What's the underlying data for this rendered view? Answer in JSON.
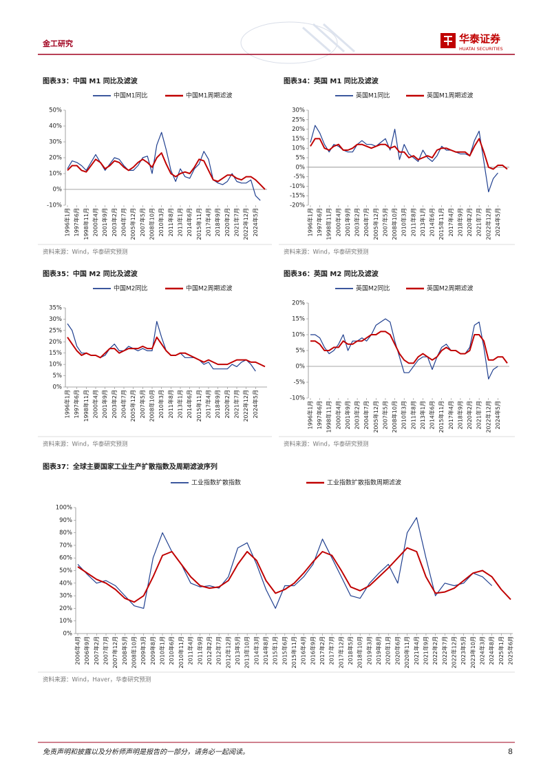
{
  "header": {
    "section": "金工研究",
    "brand": "华泰证券",
    "brand_en": "HUATAI SECURITIES"
  },
  "chart_data": [
    {
      "type": "line",
      "title": "图表33：中国 M1 同比及滤波",
      "source": "资料来源：Wind，华泰研究预测",
      "categories": [
        "1996年1月",
        null,
        "1997年6月",
        null,
        "1998年11月",
        null,
        "2000年4月",
        null,
        "2001年9月",
        null,
        "2003年2月",
        null,
        "2004年7月",
        null,
        "2005年12月",
        null,
        "2007年5月",
        null,
        "2008年10月",
        null,
        "2010年3月",
        null,
        "2011年8月",
        null,
        "2013年1月",
        null,
        "2014年6月",
        null,
        "2015年11月",
        null,
        "2017年4月",
        null,
        "2018年9月",
        null,
        "2020年2月",
        null,
        "2021年7月",
        null,
        "2022年12月",
        null,
        "2024年5月",
        null,
        null
      ],
      "series": [
        {
          "name": "中国M1同比",
          "color": "#1f3f8f",
          "width": 1.2,
          "values": [
            13,
            18,
            17,
            15,
            12,
            17,
            22,
            17,
            12,
            16,
            20,
            19,
            15,
            12,
            12,
            15,
            20,
            21,
            10,
            28,
            36,
            25,
            12,
            5,
            13,
            8,
            7,
            13,
            16,
            24,
            19,
            6,
            4,
            3,
            5,
            10,
            5,
            4,
            4,
            6,
            -4,
            -7,
            null
          ]
        },
        {
          "name": "中国M1周期滤波",
          "color": "#c00000",
          "width": 2,
          "values": [
            12,
            15,
            15,
            12,
            11,
            15,
            19,
            17,
            13,
            15,
            18,
            17,
            14,
            12,
            14,
            17,
            19,
            17,
            14,
            20,
            23,
            16,
            10,
            8,
            10,
            11,
            10,
            14,
            19,
            18,
            12,
            6,
            5,
            7,
            9,
            9,
            7,
            6,
            8,
            8,
            6,
            3,
            0
          ]
        }
      ],
      "ylim": [
        -10,
        50
      ],
      "yticks": [
        {
          "value": -10,
          "label": "-10%"
        },
        {
          "value": 0,
          "label": "0%"
        },
        {
          "value": 10,
          "label": "10%"
        },
        {
          "value": 20,
          "label": "20%"
        },
        {
          "value": 30,
          "label": "30%"
        },
        {
          "value": 40,
          "label": "40%"
        },
        {
          "value": 50,
          "label": "50%"
        }
      ]
    },
    {
      "type": "line",
      "title": "图表34：英国 M1 同比及滤波",
      "source": "资料来源：Wind，华泰研究预测",
      "categories": [
        "1996年1月",
        null,
        "1997年6月",
        null,
        "1998年11月",
        null,
        "2000年4月",
        null,
        "2001年9月",
        null,
        "2003年2月",
        null,
        "2004年7月",
        null,
        "2005年12月",
        null,
        "2007年5月",
        null,
        "2008年10月",
        null,
        "2010年3月",
        null,
        "2011年8月",
        null,
        "2013年1月",
        null,
        "2014年6月",
        null,
        "2015年11月",
        null,
        "2017年4月",
        null,
        "2018年9月",
        null,
        "2020年2月",
        null,
        "2021年7月",
        null,
        "2022年12月",
        null,
        "2024年5月",
        null,
        null
      ],
      "series": [
        {
          "name": "英国M1同比",
          "color": "#1f3f8f",
          "width": 1.2,
          "values": [
            13,
            22,
            18,
            12,
            8,
            12,
            11,
            9,
            8,
            8,
            12,
            14,
            12,
            12,
            11,
            13,
            15,
            9,
            20,
            4,
            12,
            7,
            5,
            3,
            9,
            5,
            3,
            6,
            11,
            9,
            9,
            8,
            7,
            7,
            6,
            14,
            19,
            3,
            -13,
            -6,
            -3,
            null,
            null
          ]
        },
        {
          "name": "英国M1周期滤波",
          "color": "#c00000",
          "width": 2,
          "values": [
            11,
            15,
            15,
            10,
            9,
            11,
            12,
            9,
            9,
            10,
            12,
            12,
            11,
            10,
            11,
            12,
            12,
            10,
            11,
            8,
            8,
            5,
            6,
            4,
            5,
            6,
            5,
            9,
            10,
            10,
            9,
            8,
            8,
            8,
            6,
            11,
            15,
            8,
            0,
            -1,
            1,
            1,
            -1
          ]
        }
      ],
      "ylim": [
        -20,
        30
      ],
      "yticks": [
        {
          "value": -20,
          "label": "-20%"
        },
        {
          "value": -15,
          "label": "-15%"
        },
        {
          "value": -10,
          "label": "-10%"
        },
        {
          "value": -5,
          "label": "-5%"
        },
        {
          "value": 0,
          "label": "0%"
        },
        {
          "value": 5,
          "label": "5%"
        },
        {
          "value": 10,
          "label": "10%"
        },
        {
          "value": 15,
          "label": "15%"
        },
        {
          "value": 20,
          "label": "20%"
        },
        {
          "value": 25,
          "label": "25%"
        },
        {
          "value": 30,
          "label": "30%"
        }
      ]
    },
    {
      "type": "line",
      "title": "图表35：中国 M2 同比及滤波",
      "source": "资料来源：Wind，华泰研究预测",
      "categories": [
        "1996年1月",
        null,
        "1997年6月",
        null,
        "1998年11月",
        null,
        "2000年4月",
        null,
        "2001年9月",
        null,
        "2003年2月",
        null,
        "2004年7月",
        null,
        "2005年12月",
        null,
        "2007年5月",
        null,
        "2008年10月",
        null,
        "2010年3月",
        null,
        "2011年8月",
        null,
        "2013年1月",
        null,
        "2014年6月",
        null,
        "2015年11月",
        null,
        "2017年4月",
        null,
        "2018年9月",
        null,
        "2020年2月",
        null,
        "2021年7月",
        null,
        "2022年12月",
        null,
        "2024年5月",
        null,
        null
      ],
      "series": [
        {
          "name": "中国M2同比",
          "color": "#1f3f8f",
          "width": 1.2,
          "values": [
            28,
            25,
            18,
            15,
            15,
            14,
            14,
            13,
            14,
            17,
            19,
            16,
            16,
            18,
            17,
            16,
            17,
            16,
            16,
            29,
            22,
            16,
            14,
            14,
            15,
            13,
            13,
            13,
            12,
            10,
            11,
            8,
            8,
            8,
            8,
            10,
            9,
            11,
            12,
            10,
            7,
            null,
            null
          ]
        },
        {
          "name": "中国M2周期滤波",
          "color": "#c00000",
          "width": 2,
          "values": [
            22,
            19,
            16,
            14,
            15,
            14,
            14,
            13,
            15,
            17,
            17,
            15,
            16,
            17,
            17,
            17,
            18,
            17,
            17,
            22,
            19,
            16,
            14,
            14,
            15,
            15,
            14,
            13,
            12,
            11,
            12,
            11,
            10,
            10,
            10,
            11,
            12,
            12,
            12,
            11,
            11,
            10,
            9
          ]
        }
      ],
      "ylim": [
        0,
        35
      ],
      "yticks": [
        {
          "value": 0,
          "label": "0%"
        },
        {
          "value": 5,
          "label": "5%"
        },
        {
          "value": 10,
          "label": "10%"
        },
        {
          "value": 15,
          "label": "15%"
        },
        {
          "value": 20,
          "label": "20%"
        },
        {
          "value": 25,
          "label": "25%"
        },
        {
          "value": 30,
          "label": "30%"
        },
        {
          "value": 35,
          "label": "35%"
        }
      ]
    },
    {
      "type": "line",
      "title": "图表36：英国 M2 同比及滤波",
      "source": "资料来源：Wind，华泰研究预测",
      "categories": [
        "1996年1月",
        null,
        "1997年6月",
        null,
        "1998年11月",
        null,
        "2000年4月",
        null,
        "2001年9月",
        null,
        "2003年2月",
        null,
        "2004年7月",
        null,
        "2005年12月",
        null,
        "2007年5月",
        null,
        "2008年10月",
        null,
        "2010年3月",
        null,
        "2011年8月",
        null,
        "2013年1月",
        null,
        "2014年6月",
        null,
        "2015年11月",
        null,
        "2017年4月",
        null,
        "2018年9月",
        null,
        "2020年2月",
        null,
        "2021年7月",
        null,
        "2022年12月",
        null,
        "2024年5月",
        null,
        null
      ],
      "series": [
        {
          "name": "英国M2同比",
          "color": "#1f3f8f",
          "width": 1.2,
          "values": [
            10,
            10,
            9,
            6,
            4,
            5,
            7,
            10,
            5,
            8,
            8,
            9,
            8,
            10,
            13,
            14,
            15,
            14,
            8,
            3,
            -2,
            -2,
            0,
            2,
            3,
            3,
            -1,
            3,
            6,
            7,
            5,
            5,
            4,
            4,
            6,
            13,
            14,
            6,
            -4,
            -1,
            0,
            null,
            null
          ]
        },
        {
          "name": "英国M2周期滤波",
          "color": "#c00000",
          "width": 2,
          "values": [
            8,
            8,
            7,
            5,
            5,
            6,
            6,
            8,
            7,
            7,
            8,
            8,
            9,
            10,
            10,
            11,
            11,
            10,
            7,
            4,
            2,
            1,
            1,
            3,
            4,
            3,
            2,
            3,
            5,
            6,
            5,
            5,
            4,
            4,
            5,
            10,
            10,
            8,
            2,
            2,
            3,
            3,
            1
          ]
        }
      ],
      "ylim": [
        -10,
        20
      ],
      "yticks": [
        {
          "value": -10,
          "label": "-10%"
        },
        {
          "value": -5,
          "label": "-5%"
        },
        {
          "value": 0,
          "label": "0%"
        },
        {
          "value": 5,
          "label": "5%"
        },
        {
          "value": 10,
          "label": "10%"
        },
        {
          "value": 15,
          "label": "15%"
        },
        {
          "value": 20,
          "label": "20%"
        }
      ]
    },
    {
      "type": "line",
      "title": "图表37：全球主要国家工业生产扩散指数及周期滤波序列",
      "source": "资料来源：Wind，Haver，华泰研究预测",
      "categories": [
        "2006年4月",
        "2006年9月",
        "2007年2月",
        "2007年7月",
        "2007年12月",
        "2008年5月",
        "2008年10月",
        "2009年3月",
        "2009年8月",
        "2010年1月",
        "2010年6月",
        "2010年11月",
        "2011年4月",
        "2011年9月",
        "2012年2月",
        "2012年7月",
        "2012年12月",
        "2013年5月",
        "2013年10月",
        "2014年3月",
        "2014年8月",
        "2015年1月",
        "2015年6月",
        "2015年11月",
        "2016年4月",
        "2016年9月",
        "2017年2月",
        "2017年7月",
        "2017年12月",
        "2018年5月",
        "2018年10月",
        "2019年3月",
        "2019年8月",
        "2020年1月",
        "2020年6月",
        "2020年11月",
        "2021年4月",
        "2021年9月",
        "2022年2月",
        "2022年7月",
        "2022年12月",
        "2023年5月",
        "2023年10月",
        "2024年3月",
        "2024年8月",
        "2025年1月",
        "2025年6月"
      ],
      "series": [
        {
          "name": "工业指数扩散指数",
          "color": "#1f3f8f",
          "width": 1.2,
          "values": [
            55,
            47,
            40,
            42,
            38,
            30,
            22,
            20,
            60,
            80,
            65,
            55,
            40,
            37,
            38,
            36,
            45,
            68,
            72,
            55,
            35,
            20,
            38,
            38,
            45,
            55,
            75,
            60,
            45,
            30,
            28,
            40,
            48,
            55,
            40,
            80,
            92,
            60,
            30,
            40,
            38,
            40,
            48,
            45,
            38,
            null,
            null
          ]
        },
        {
          "name": "工业指数扩散指数周期滤波",
          "color": "#c00000",
          "width": 2,
          "values": [
            53,
            48,
            43,
            40,
            35,
            28,
            25,
            30,
            45,
            62,
            65,
            55,
            45,
            38,
            36,
            37,
            42,
            55,
            65,
            58,
            42,
            32,
            35,
            40,
            48,
            57,
            65,
            62,
            50,
            37,
            34,
            38,
            45,
            52,
            60,
            68,
            65,
            45,
            32,
            33,
            36,
            42,
            48,
            50,
            45,
            35,
            27
          ]
        }
      ],
      "ylim": [
        0,
        100
      ],
      "yticks": [
        {
          "value": 0,
          "label": "0%"
        },
        {
          "value": 10,
          "label": "10%"
        },
        {
          "value": 20,
          "label": "20%"
        },
        {
          "value": 30,
          "label": "30%"
        },
        {
          "value": 40,
          "label": "40%"
        },
        {
          "value": 50,
          "label": "50%"
        },
        {
          "value": 60,
          "label": "60%"
        },
        {
          "value": 70,
          "label": "70%"
        },
        {
          "value": 80,
          "label": "80%"
        },
        {
          "value": 90,
          "label": "90%"
        },
        {
          "value": 100,
          "label": "100%"
        }
      ]
    }
  ],
  "footer": {
    "disclaimer": "免责声明和披露以及分析师声明是报告的一部分，请务必一起阅读。",
    "page": 8
  }
}
